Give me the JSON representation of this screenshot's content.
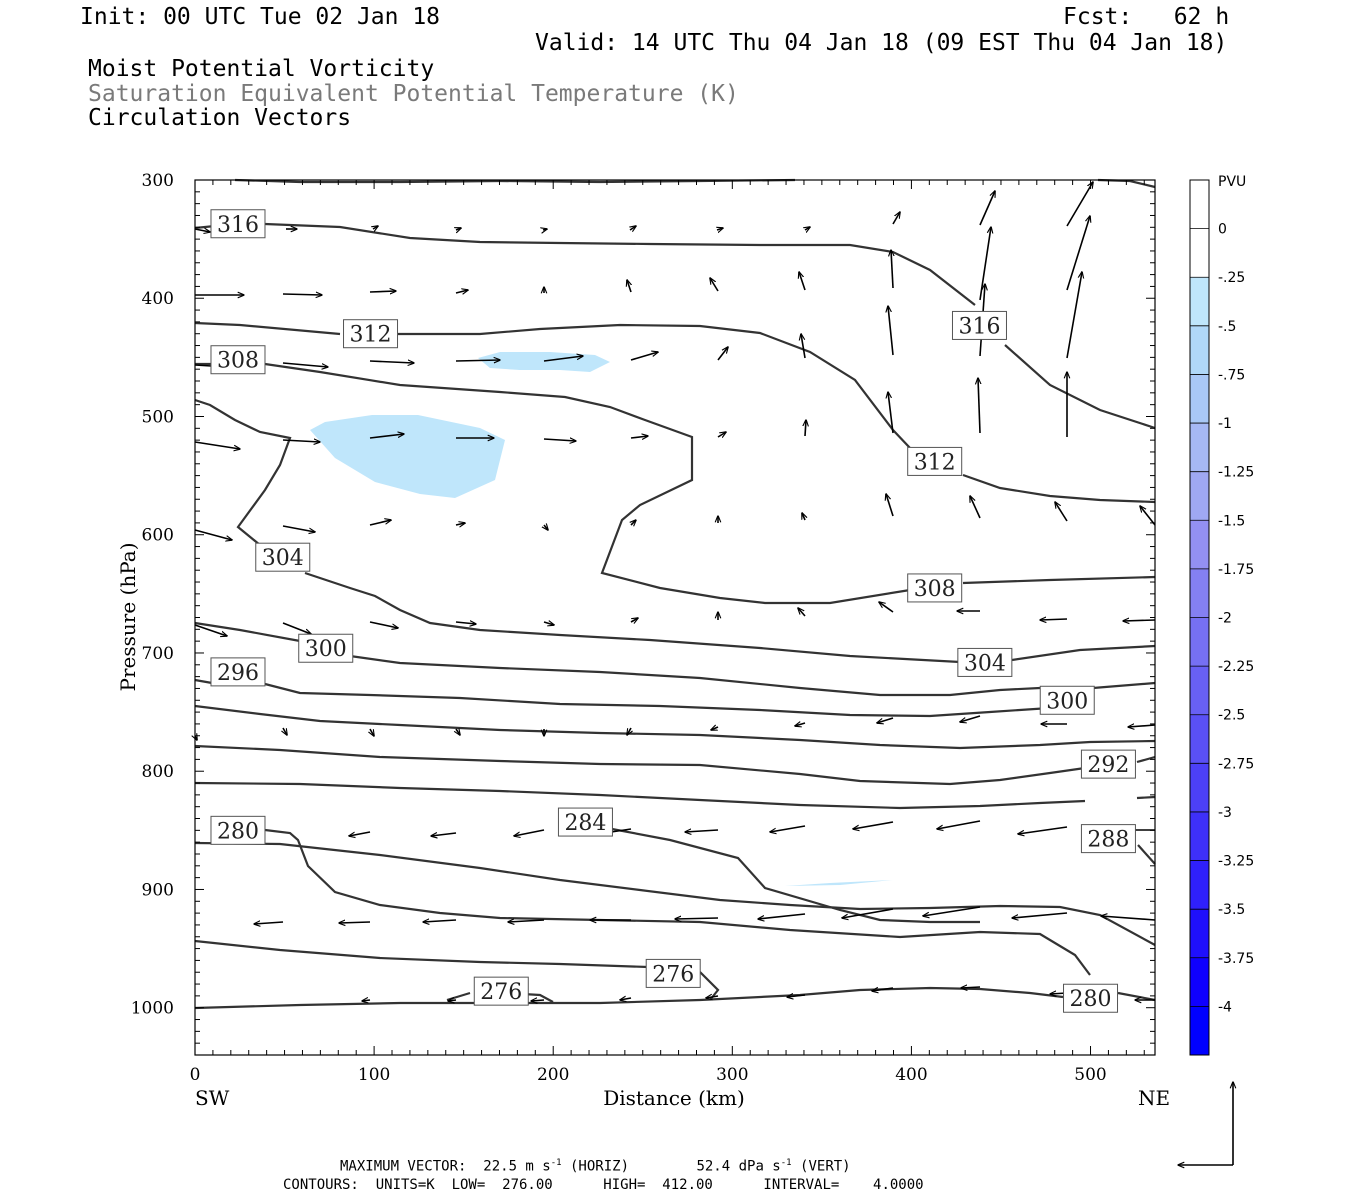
{
  "header": {
    "init": "Init: 00 UTC Tue 02 Jan 18",
    "fcst": "Fcst:   62 h",
    "valid": "Valid: 14 UTC Thu 04 Jan 18 (09 EST Thu 04 Jan 18)",
    "field1": "Moist Potential Vorticity",
    "field2": "Saturation Equivalent Potential Temperature (K)",
    "field3": "Circulation Vectors"
  },
  "colors": {
    "contour": "#333333",
    "shade_light": "#bfe6fb",
    "vector": "#000000",
    "colorbar": [
      "#ffffff",
      "#ffffff",
      "#bfe6fb",
      "#b0d8f8",
      "#a9c8f6",
      "#a6b8f4",
      "#9fa8f3",
      "#9390f2",
      "#8480f2",
      "#7670f3",
      "#6860f4",
      "#5a50f5",
      "#4c40f7",
      "#3e30f9",
      "#2f20fb",
      "#1f10fc",
      "#0f00fe",
      "#0000ff"
    ]
  },
  "chart_data": {
    "type": "contour",
    "xlabel": "Distance (km)",
    "ylabel": "Pressure (hPa)",
    "xlim": [
      0,
      536
    ],
    "ylim": [
      1040,
      300
    ],
    "y_scale": "linear (pressure, inverted)",
    "x_ticks": [
      "0",
      "100",
      "200",
      "300",
      "400",
      "500"
    ],
    "x_tick_values": [
      0,
      100,
      200,
      300,
      400,
      500
    ],
    "y_ticks": [
      "300",
      "400",
      "500",
      "600",
      "700",
      "800",
      "900",
      "1000"
    ],
    "y_tick_values": [
      300,
      400,
      500,
      600,
      700,
      800,
      900,
      1000
    ],
    "left_end": "SW",
    "right_end": "NE",
    "contour_labels": [
      {
        "text": "316",
        "x": 24,
        "p": 337
      },
      {
        "text": "312",
        "x": 98,
        "p": 430
      },
      {
        "text": "308",
        "x": 24,
        "p": 452
      },
      {
        "text": "304",
        "x": 49,
        "p": 619
      },
      {
        "text": "300",
        "x": 73,
        "p": 696
      },
      {
        "text": "296",
        "x": 24,
        "p": 716
      },
      {
        "text": "280",
        "x": 24,
        "p": 850
      },
      {
        "text": "284",
        "x": 218,
        "p": 843
      },
      {
        "text": "276",
        "x": 171,
        "p": 986
      },
      {
        "text": "276",
        "x": 267,
        "p": 971
      },
      {
        "text": "316",
        "x": 438,
        "p": 423
      },
      {
        "text": "312",
        "x": 413,
        "p": 538
      },
      {
        "text": "308",
        "x": 413,
        "p": 645
      },
      {
        "text": "304",
        "x": 441,
        "p": 708
      },
      {
        "text": "300",
        "x": 487,
        "p": 740
      },
      {
        "text": "292",
        "x": 510,
        "p": 794
      },
      {
        "text": "288",
        "x": 510,
        "p": 857
      },
      {
        "text": "280",
        "x": 500,
        "p": 992
      }
    ],
    "colorbar": {
      "title": "PVU",
      "labels": [
        "0",
        "-.25",
        "-.5",
        "-.75",
        "-1",
        "-1.25",
        "-1.5",
        "-1.75",
        "-2",
        "-2.25",
        "-2.5",
        "-2.75",
        "-3",
        "-3.25",
        "-3.5",
        "-3.75",
        "-4"
      ]
    },
    "legend_vector": {
      "horizontal": "22.5 m s-1",
      "vertical": "52.4 dPa s-1"
    }
  },
  "footer": {
    "line1a": "MAXIMUM VECTOR:  22.5 m s",
    "line1b": "(HORIZ)",
    "line1c": "52.4 dPa s",
    "line1d": "(VERT)",
    "sup": "-1",
    "line2": "CONTOURS:  UNITS=K  LOW=  276.00      HIGH=  412.00      INTERVAL=    4.0000"
  }
}
